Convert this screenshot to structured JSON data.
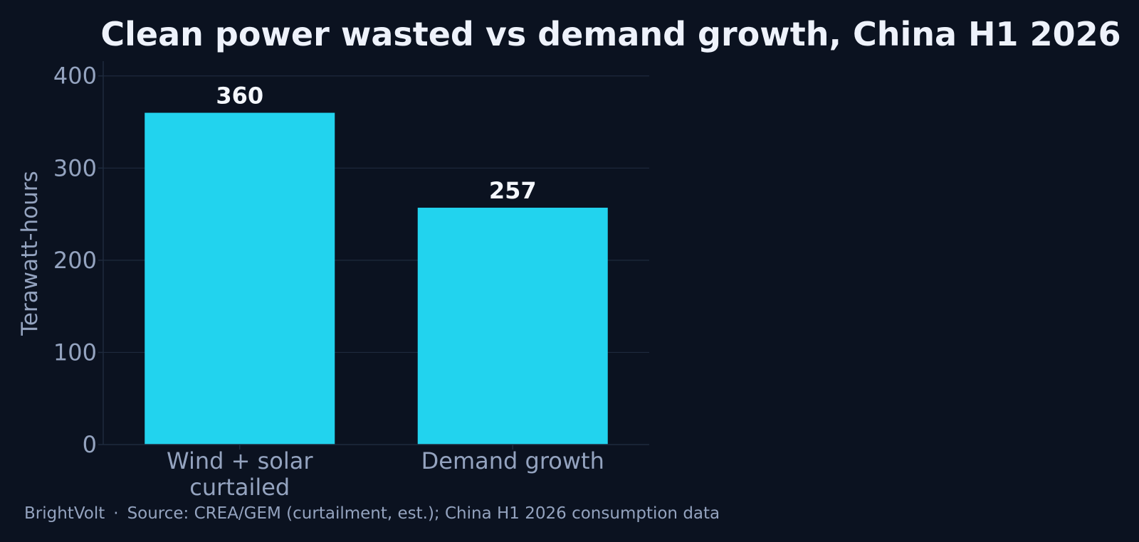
{
  "chart_data": {
    "type": "bar",
    "title": "Clean power wasted vs demand growth, China H1 2026",
    "xlabel": "",
    "ylabel": "Terawatt-hours",
    "categories": [
      [
        "Wind + solar",
        "curtailed"
      ],
      [
        "Demand growth"
      ]
    ],
    "values": [
      360,
      257
    ],
    "data_labels": [
      "360",
      "257"
    ],
    "ylim": [
      0,
      416
    ],
    "yticks": [
      0,
      100,
      200,
      300,
      400
    ],
    "ytick_labels": [
      "0",
      "100",
      "200",
      "300",
      "400"
    ],
    "grid": true,
    "legend": "none",
    "bar_color": "#22d3ee"
  },
  "footer": {
    "brand": "BrightVolt",
    "separator": "·",
    "source": "Source: CREA/GEM (curtailment, est.); China H1 2026 consumption data"
  },
  "colors": {
    "background": "#0b1220",
    "grid": "#1e2a3d",
    "text_muted": "#94a3bf",
    "title": "#eef2fb"
  }
}
